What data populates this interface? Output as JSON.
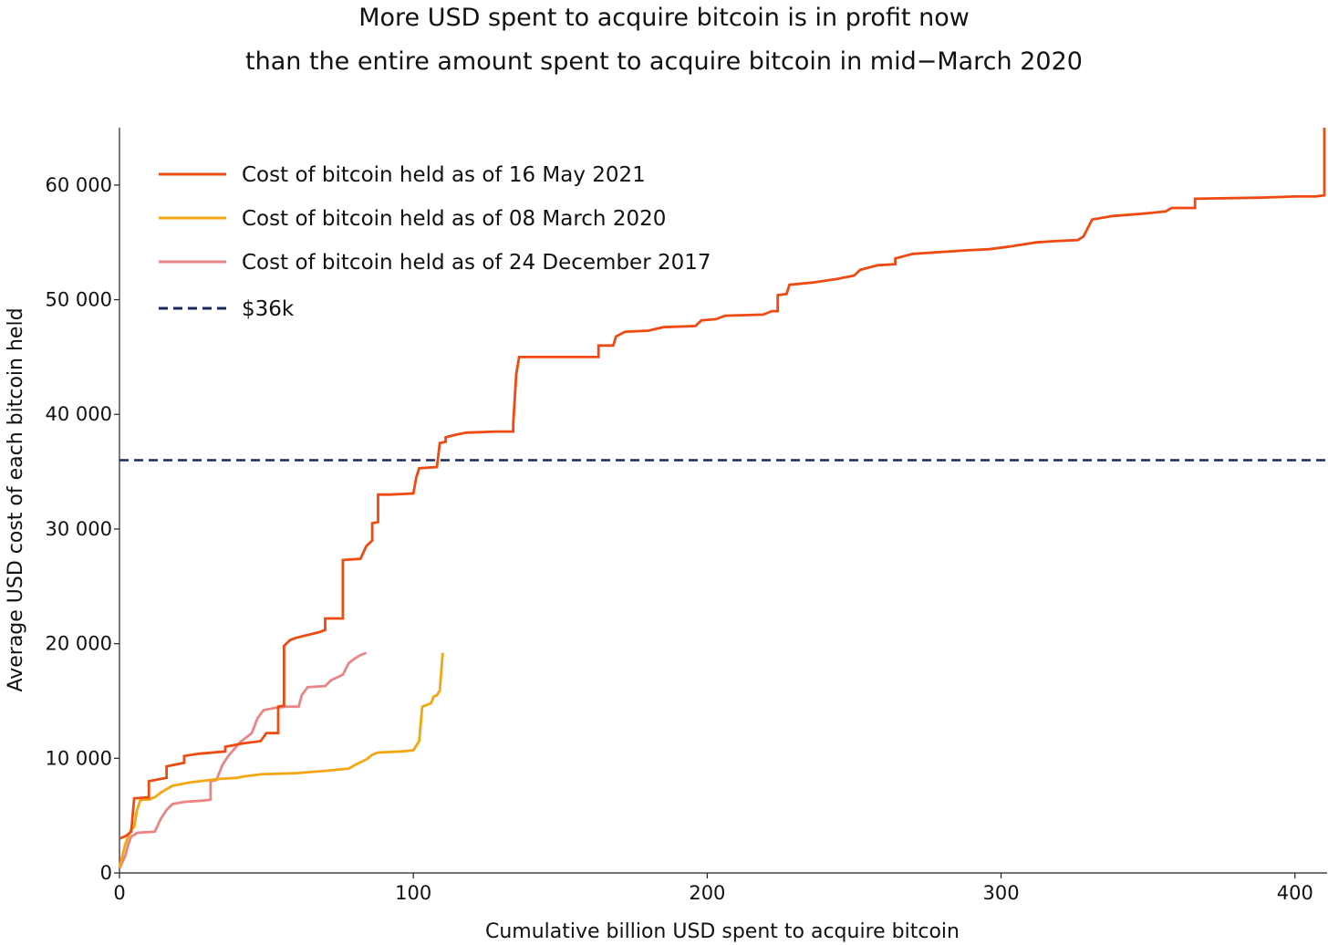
{
  "chart_data": {
    "type": "line",
    "title_line1": "More USD spent to acquire bitcoin is in profit now",
    "title_line2": "than the entire amount spent to acquire bitcoin in mid−March 2020",
    "xlabel": "Cumulative billion USD spent to acquire bitcoin",
    "ylabel": "Average USD cost of each bitcoin held",
    "xlim": [
      0,
      410
    ],
    "ylim": [
      0,
      65000
    ],
    "x_ticks": [
      0,
      100,
      200,
      300,
      400
    ],
    "x_tick_labels": [
      "0",
      "100",
      "200",
      "300",
      "400"
    ],
    "y_ticks": [
      0,
      10000,
      20000,
      30000,
      40000,
      50000,
      60000
    ],
    "y_tick_labels": [
      "0",
      "10 000",
      "20 000",
      "30 000",
      "40 000",
      "50 000",
      "60 000"
    ],
    "grid": false,
    "legend_position": "top-left",
    "reference_line": {
      "name": "$36k",
      "y": 36000,
      "color": "#1b2a5e",
      "style": "dashed"
    },
    "series": [
      {
        "name": "Cost of bitcoin held as of 16 May 2021",
        "color": "#ee4a12",
        "points": [
          [
            0,
            3000
          ],
          [
            2,
            3200
          ],
          [
            4,
            3600
          ],
          [
            5,
            6500
          ],
          [
            10,
            6600
          ],
          [
            10,
            8000
          ],
          [
            16,
            8300
          ],
          [
            16,
            9300
          ],
          [
            22,
            9600
          ],
          [
            22,
            10200
          ],
          [
            27,
            10400
          ],
          [
            36,
            10600
          ],
          [
            36,
            11000
          ],
          [
            42,
            11300
          ],
          [
            48,
            11500
          ],
          [
            50,
            12200
          ],
          [
            54,
            12200
          ],
          [
            54,
            14500
          ],
          [
            56,
            14600
          ],
          [
            56,
            19800
          ],
          [
            58,
            20300
          ],
          [
            60,
            20500
          ],
          [
            68,
            21000
          ],
          [
            70,
            21200
          ],
          [
            70,
            22200
          ],
          [
            76,
            22200
          ],
          [
            76,
            27300
          ],
          [
            82,
            27400
          ],
          [
            84,
            28500
          ],
          [
            86,
            29000
          ],
          [
            86,
            30500
          ],
          [
            88,
            30600
          ],
          [
            88,
            33000
          ],
          [
            92,
            33000
          ],
          [
            100,
            33100
          ],
          [
            101,
            34500
          ],
          [
            102,
            35300
          ],
          [
            108,
            35400
          ],
          [
            109,
            37500
          ],
          [
            111,
            37600
          ],
          [
            111,
            38000
          ],
          [
            114,
            38200
          ],
          [
            118,
            38400
          ],
          [
            128,
            38500
          ],
          [
            134,
            38500
          ],
          [
            134,
            39200
          ],
          [
            135,
            43500
          ],
          [
            136,
            45000
          ],
          [
            163,
            45000
          ],
          [
            163,
            46000
          ],
          [
            168,
            46000
          ],
          [
            169,
            46800
          ],
          [
            172,
            47200
          ],
          [
            180,
            47300
          ],
          [
            185,
            47600
          ],
          [
            196,
            47700
          ],
          [
            198,
            48200
          ],
          [
            203,
            48300
          ],
          [
            206,
            48600
          ],
          [
            219,
            48700
          ],
          [
            222,
            49000
          ],
          [
            224,
            49000
          ],
          [
            224,
            50400
          ],
          [
            227,
            50500
          ],
          [
            228,
            51300
          ],
          [
            236,
            51500
          ],
          [
            244,
            51800
          ],
          [
            250,
            52100
          ],
          [
            252,
            52600
          ],
          [
            258,
            53000
          ],
          [
            264,
            53100
          ],
          [
            264,
            53600
          ],
          [
            270,
            54000
          ],
          [
            288,
            54300
          ],
          [
            296,
            54400
          ],
          [
            302,
            54600
          ],
          [
            312,
            55000
          ],
          [
            318,
            55100
          ],
          [
            326,
            55200
          ],
          [
            328,
            55500
          ],
          [
            331,
            57000
          ],
          [
            338,
            57300
          ],
          [
            348,
            57500
          ],
          [
            356,
            57700
          ],
          [
            358,
            58000
          ],
          [
            366,
            58000
          ],
          [
            366,
            58800
          ],
          [
            388,
            58900
          ],
          [
            400,
            59000
          ],
          [
            407,
            59000
          ],
          [
            410,
            59100
          ],
          [
            410,
            65000
          ]
        ]
      },
      {
        "name": "Cost of bitcoin held as of 08 March 2020",
        "color": "#f5a511",
        "points": [
          [
            0,
            500
          ],
          [
            1,
            1500
          ],
          [
            2,
            2500
          ],
          [
            3,
            3200
          ],
          [
            4,
            3800
          ],
          [
            5,
            4000
          ],
          [
            6,
            5500
          ],
          [
            7,
            6300
          ],
          [
            8,
            6400
          ],
          [
            10,
            6400
          ],
          [
            12,
            6600
          ],
          [
            14,
            7000
          ],
          [
            16,
            7300
          ],
          [
            18,
            7600
          ],
          [
            20,
            7700
          ],
          [
            24,
            7900
          ],
          [
            34,
            8200
          ],
          [
            40,
            8300
          ],
          [
            42,
            8400
          ],
          [
            48,
            8600
          ],
          [
            60,
            8700
          ],
          [
            70,
            8900
          ],
          [
            78,
            9100
          ],
          [
            80,
            9400
          ],
          [
            84,
            9900
          ],
          [
            86,
            10300
          ],
          [
            88,
            10500
          ],
          [
            96,
            10600
          ],
          [
            100,
            10700
          ],
          [
            102,
            11500
          ],
          [
            103,
            14500
          ],
          [
            106,
            14800
          ],
          [
            107,
            15400
          ],
          [
            108,
            15500
          ],
          [
            109,
            15900
          ],
          [
            110,
            19200
          ]
        ]
      },
      {
        "name": "Cost of bitcoin held as of 24 December 2017",
        "color": "#ea8585",
        "points": [
          [
            0,
            400
          ],
          [
            2,
            1500
          ],
          [
            3,
            2500
          ],
          [
            4,
            3200
          ],
          [
            5,
            3300
          ],
          [
            6,
            3500
          ],
          [
            12,
            3600
          ],
          [
            14,
            4700
          ],
          [
            16,
            5500
          ],
          [
            18,
            6000
          ],
          [
            22,
            6200
          ],
          [
            28,
            6300
          ],
          [
            31,
            6400
          ],
          [
            31,
            8000
          ],
          [
            33,
            8100
          ],
          [
            35,
            9400
          ],
          [
            37,
            10200
          ],
          [
            39,
            10800
          ],
          [
            41,
            11400
          ],
          [
            45,
            12200
          ],
          [
            47,
            13500
          ],
          [
            49,
            14200
          ],
          [
            53,
            14400
          ],
          [
            57,
            14500
          ],
          [
            61,
            14500
          ],
          [
            62,
            15500
          ],
          [
            64,
            16200
          ],
          [
            70,
            16300
          ],
          [
            72,
            16800
          ],
          [
            76,
            17300
          ],
          [
            78,
            18300
          ],
          [
            80,
            18700
          ],
          [
            82,
            19000
          ],
          [
            84,
            19200
          ]
        ]
      }
    ]
  }
}
